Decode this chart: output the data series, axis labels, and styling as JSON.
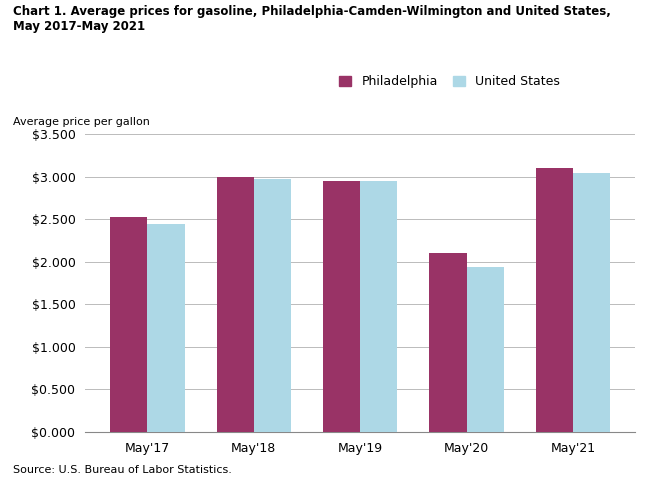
{
  "title_line1": "Chart 1. Average prices for gasoline, Philadelphia-Camden-Wilmington and United States,",
  "title_line2": "May 2017-May 2021",
  "ylabel": "Average price per gallon",
  "source": "Source: U.S. Bureau of Labor Statistics.",
  "categories": [
    "May'17",
    "May'18",
    "May'19",
    "May'20",
    "May'21"
  ],
  "philadelphia": [
    2.524,
    3.003,
    2.954,
    2.107,
    3.107
  ],
  "us": [
    2.448,
    2.971,
    2.957,
    1.944,
    3.045
  ],
  "philly_color": "#993366",
  "us_color": "#ADD8E6",
  "ylim": [
    0,
    3.5
  ],
  "yticks": [
    0.0,
    0.5,
    1.0,
    1.5,
    2.0,
    2.5,
    3.0,
    3.5
  ],
  "legend_labels": [
    "Philadelphia",
    "United States"
  ],
  "bar_width": 0.35,
  "figsize": [
    6.55,
    4.8
  ],
  "dpi": 100,
  "grid_color": "#BBBBBB",
  "background_color": "#FFFFFF"
}
